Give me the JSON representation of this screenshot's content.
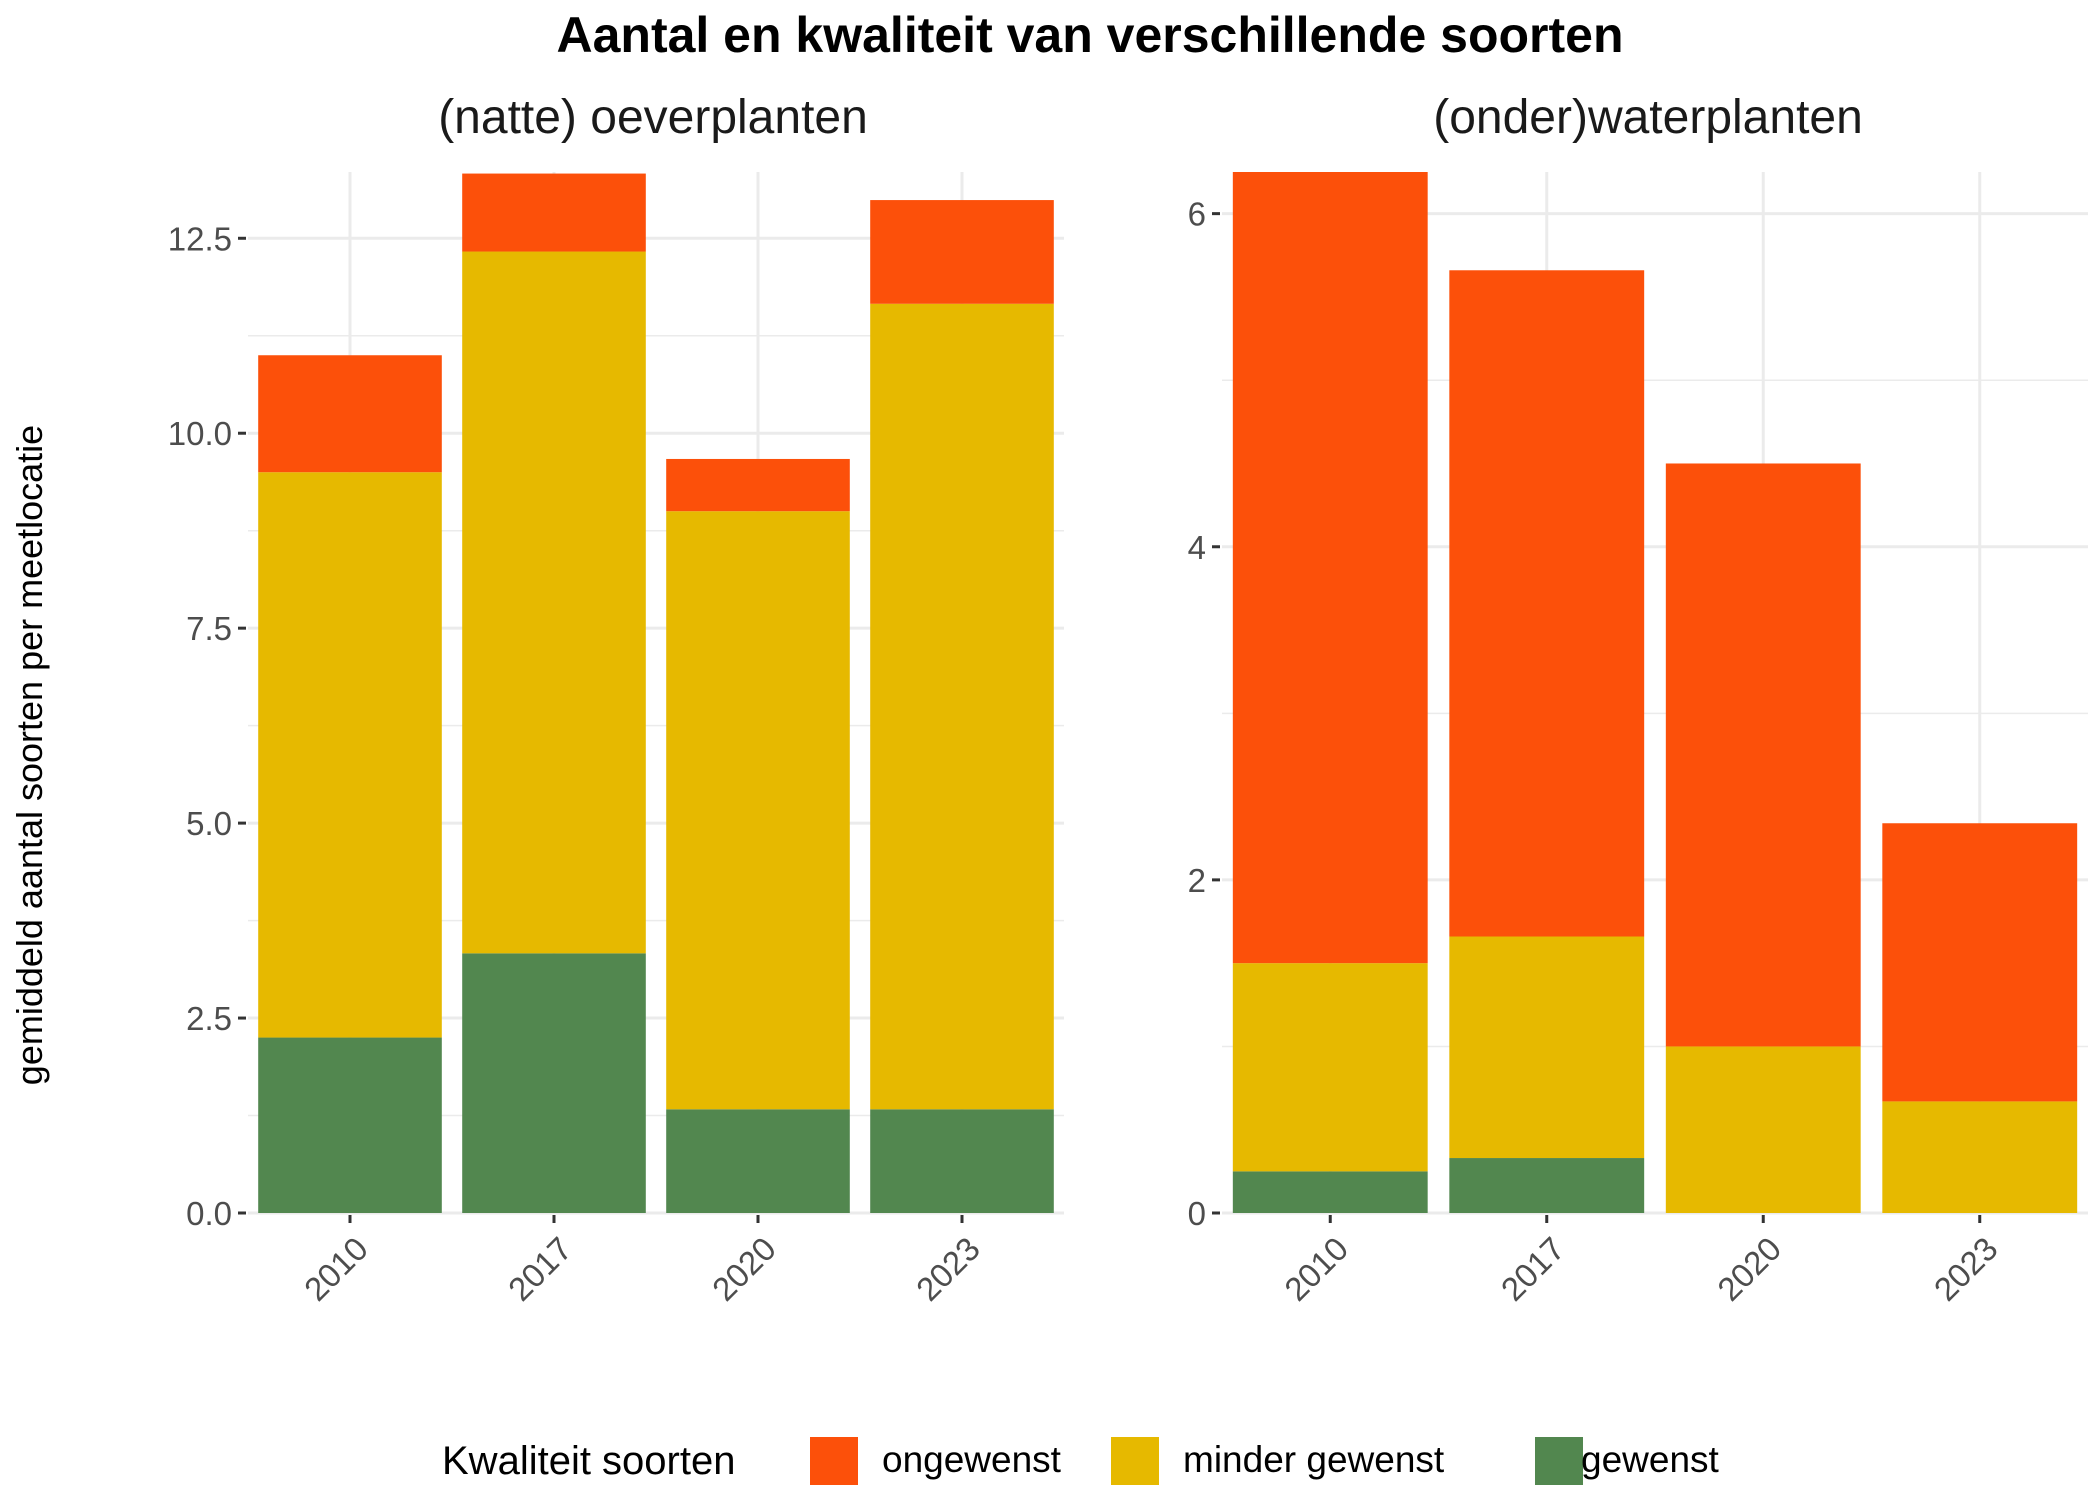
{
  "title": "Aantal en kwaliteit van verschillende soorten",
  "ylabel": "gemiddeld aantal soorten per meetlocatie",
  "legend": {
    "title": "Kwaliteit soorten",
    "items": [
      {
        "label": "ongewenst",
        "color": "#FC500A"
      },
      {
        "label": "minder gewenst",
        "color": "#E6B900"
      },
      {
        "label": "gewenst",
        "color": "#52874F"
      }
    ]
  },
  "chart_data": [
    {
      "type": "bar",
      "stacked": true,
      "title": "(natte) oeverplanten",
      "categories": [
        "2010",
        "2017",
        "2020",
        "2023"
      ],
      "ylim": [
        0,
        13.35
      ],
      "yticks": [
        0,
        2.5,
        5,
        7.5,
        10,
        12.5
      ],
      "ytick_labels": [
        "0.0",
        "2.5",
        "5.0",
        "7.5",
        "10.0",
        "12.5"
      ],
      "series": [
        {
          "name": "gewenst",
          "values": [
            2.25,
            3.33,
            1.33,
            1.33
          ]
        },
        {
          "name": "minder gewenst",
          "values": [
            7.25,
            9.0,
            7.67,
            10.33
          ]
        },
        {
          "name": "ongewenst",
          "values": [
            1.5,
            1.0,
            0.67,
            1.33
          ]
        }
      ]
    },
    {
      "type": "bar",
      "stacked": true,
      "title": "(onder)waterplanten",
      "categories": [
        "2010",
        "2017",
        "2020",
        "2023"
      ],
      "ylim": [
        0,
        6.25
      ],
      "yticks": [
        0,
        2,
        4,
        6
      ],
      "ytick_labels": [
        "0",
        "2",
        "4",
        "6"
      ],
      "series": [
        {
          "name": "gewenst",
          "values": [
            0.25,
            0.33,
            0,
            0
          ]
        },
        {
          "name": "minder gewenst",
          "values": [
            1.25,
            1.33,
            1.0,
            0.67
          ]
        },
        {
          "name": "ongewenst",
          "values": [
            4.75,
            4.0,
            3.5,
            1.67
          ]
        }
      ]
    }
  ]
}
